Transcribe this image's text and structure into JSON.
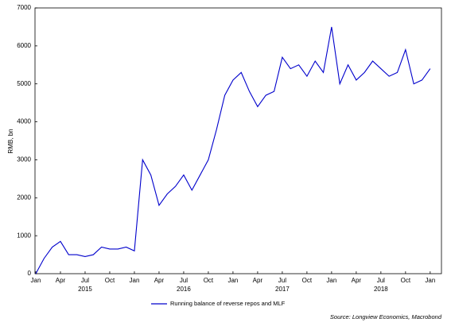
{
  "chart_data": {
    "type": "line",
    "ylabel": "RMB, bn",
    "legend_label": "Running balance of reverse repos and MLF",
    "source": "Source: Longview Economics, Macrobond",
    "x": [
      "2015-01",
      "2015-02",
      "2015-03",
      "2015-04",
      "2015-05",
      "2015-06",
      "2015-07",
      "2015-08",
      "2015-09",
      "2015-10",
      "2015-11",
      "2015-12",
      "2016-01",
      "2016-02",
      "2016-03",
      "2016-04",
      "2016-05",
      "2016-06",
      "2016-07",
      "2016-08",
      "2016-09",
      "2016-10",
      "2016-11",
      "2016-12",
      "2017-01",
      "2017-02",
      "2017-03",
      "2017-04",
      "2017-05",
      "2017-06",
      "2017-07",
      "2017-08",
      "2017-09",
      "2017-10",
      "2017-11",
      "2017-12",
      "2018-01",
      "2018-02",
      "2018-03",
      "2018-04",
      "2018-05",
      "2018-06",
      "2018-07",
      "2018-08",
      "2018-09",
      "2018-10",
      "2018-11",
      "2018-12",
      "2019-01"
    ],
    "series": [
      {
        "name": "Running balance of reverse repos and MLF",
        "color": "#0000cc",
        "values": [
          0,
          400,
          700,
          850,
          500,
          500,
          450,
          500,
          700,
          650,
          650,
          700,
          600,
          3000,
          2600,
          1800,
          2100,
          2300,
          2600,
          2200,
          2600,
          3000,
          3800,
          4700,
          5100,
          5300,
          4800,
          4400,
          4700,
          4800,
          5700,
          5400,
          5500,
          5200,
          5600,
          5300,
          6500,
          5000,
          5500,
          5100,
          5300,
          5600,
          5400,
          5200,
          5300,
          5900,
          5000,
          5100,
          5400
        ]
      }
    ],
    "ylim": [
      0,
      7000
    ],
    "yticks": [
      0,
      1000,
      2000,
      3000,
      4000,
      5000,
      6000,
      7000
    ],
    "xticks": [
      {
        "value": "2015-01",
        "label": "Jan"
      },
      {
        "value": "2015-04",
        "label": "Apr"
      },
      {
        "value": "2015-07",
        "label": "Jul"
      },
      {
        "value": "2015-10",
        "label": "Oct"
      },
      {
        "value": "2016-01",
        "label": "Jan"
      },
      {
        "value": "2016-04",
        "label": "Apr"
      },
      {
        "value": "2016-07",
        "label": "Jul"
      },
      {
        "value": "2016-10",
        "label": "Oct"
      },
      {
        "value": "2017-01",
        "label": "Jan"
      },
      {
        "value": "2017-04",
        "label": "Apr"
      },
      {
        "value": "2017-07",
        "label": "Jul"
      },
      {
        "value": "2017-10",
        "label": "Oct"
      },
      {
        "value": "2018-01",
        "label": "Jan"
      },
      {
        "value": "2018-04",
        "label": "Apr"
      },
      {
        "value": "2018-07",
        "label": "Jul"
      },
      {
        "value": "2018-10",
        "label": "Oct"
      },
      {
        "value": "2019-01",
        "label": "Jan"
      }
    ],
    "year_labels": [
      {
        "value": "2015-07",
        "label": "2015"
      },
      {
        "value": "2016-07",
        "label": "2016"
      },
      {
        "value": "2017-07",
        "label": "2017"
      },
      {
        "value": "2018-07",
        "label": "2018"
      }
    ],
    "grid": false
  }
}
